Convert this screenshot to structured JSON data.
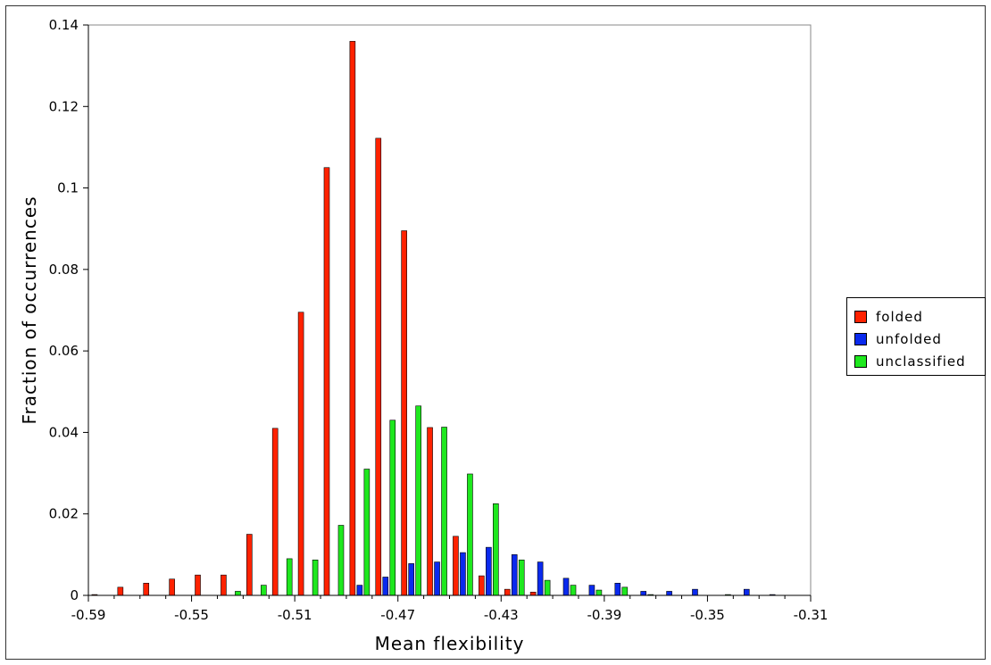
{
  "chart_data": {
    "type": "bar",
    "xlabel": "Mean flexibility",
    "ylabel": "Fraction of occurrences",
    "xlim": [
      -0.59,
      -0.31
    ],
    "ylim": [
      0,
      0.14
    ],
    "xticks": [
      "-0.59",
      "-0.55",
      "-0.51",
      "-0.47",
      "-0.43",
      "-0.39",
      "-0.35",
      "-0.31"
    ],
    "yticks": [
      "0",
      "0.02",
      "0.04",
      "0.06",
      "0.08",
      "0.1",
      "0.12",
      "0.14"
    ],
    "grid": false,
    "legend_position": "right",
    "bin_width": 0.01,
    "x": [
      -0.585,
      -0.575,
      -0.565,
      -0.555,
      -0.545,
      -0.535,
      -0.525,
      -0.515,
      -0.505,
      -0.495,
      -0.485,
      -0.475,
      -0.465,
      -0.455,
      -0.445,
      -0.435,
      -0.425,
      -0.415,
      -0.405,
      -0.395,
      -0.385,
      -0.375,
      -0.365,
      -0.355,
      -0.345,
      -0.335,
      -0.325,
      -0.315
    ],
    "series": [
      {
        "name": "folded",
        "color": "#ff2200",
        "values": [
          0.0002,
          0.002,
          0.003,
          0.004,
          0.005,
          0.005,
          0.015,
          0.041,
          0.0695,
          0.105,
          0.136,
          0.1122,
          0.0895,
          0.0412,
          0.0145,
          0.0048,
          0.0015,
          0.0008,
          0,
          0,
          0,
          0,
          0,
          0,
          0,
          0,
          0,
          0
        ]
      },
      {
        "name": "unfolded",
        "color": "#0a2aee",
        "values": [
          0,
          0,
          0,
          0,
          0,
          0,
          0,
          0,
          0,
          0,
          0.0025,
          0.0045,
          0.0078,
          0.0082,
          0.0105,
          0.0118,
          0.01,
          0.0082,
          0.0042,
          0.0025,
          0.003,
          0.001,
          0.001,
          0.0015,
          0,
          0.0015,
          0.0002,
          0
        ]
      },
      {
        "name": "unclassified",
        "color": "#1ee81e",
        "values": [
          0,
          0,
          0,
          0,
          0,
          0.001,
          0.0025,
          0.009,
          0.0087,
          0.0172,
          0.031,
          0.043,
          0.0465,
          0.0413,
          0.0298,
          0.0225,
          0.0087,
          0.0037,
          0.0025,
          0.0013,
          0.002,
          0.0002,
          0,
          0,
          0.0002,
          0,
          0,
          0
        ]
      }
    ]
  }
}
